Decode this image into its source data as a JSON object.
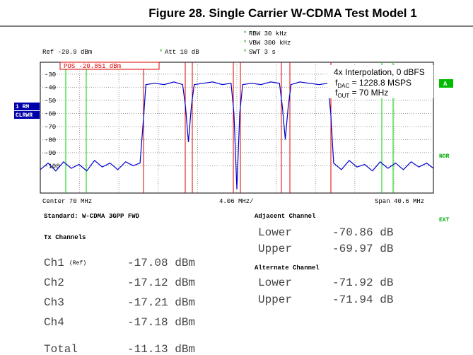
{
  "chart_data": {
    "type": "line",
    "title": "Figure 28. Single Carrier W-CDMA Test Model 1",
    "xlim": [
      49.7,
      90.3
    ],
    "ylim": [
      -120.9,
      -20.9
    ],
    "yticks": [
      -30,
      -40,
      -50,
      -60,
      -70,
      -80,
      -90,
      -100
    ],
    "grid": true,
    "series": [
      {
        "color": "#0000cc",
        "x": [
          49.7,
          50.5,
          51.3,
          52.1,
          52.9,
          53.7,
          54.5,
          55.3,
          56.1,
          56.9,
          57.7,
          58.5,
          59.3,
          60.0,
          60.4,
          60.6,
          61.5,
          62.5,
          63.5,
          64.4,
          64.7,
          65.0,
          65.3,
          65.6,
          66.5,
          67.5,
          68.5,
          69.4,
          69.7,
          70.0,
          70.3,
          70.6,
          71.5,
          72.5,
          73.5,
          74.4,
          74.7,
          75.0,
          75.3,
          75.6,
          76.5,
          77.5,
          78.5,
          79.4,
          79.7,
          80.0,
          80.8,
          81.6,
          82.4,
          83.2,
          84.0,
          84.8,
          85.6,
          86.4,
          87.2,
          88.0,
          88.8,
          89.6,
          90.3
        ],
        "values": [
          -103,
          -98,
          -104,
          -97,
          -102,
          -99,
          -104,
          -96,
          -101,
          -98,
          -103,
          -97,
          -100,
          -98,
          -60,
          -38,
          -37,
          -38,
          -36,
          -38,
          -55,
          -82,
          -55,
          -38,
          -37,
          -36,
          -38,
          -37,
          -60,
          -118,
          -60,
          -38,
          -37,
          -38,
          -36,
          -37,
          -55,
          -80,
          -55,
          -38,
          -36,
          -37,
          -38,
          -37,
          -60,
          -98,
          -103,
          -96,
          -101,
          -99,
          -104,
          -97,
          -102,
          -98,
          -103,
          -97,
          -101,
          -98,
          -102
        ]
      }
    ],
    "annotations": {
      "line1": "4x Interpolation, 0 dBFS",
      "f2": "f",
      "sub2": "DAC",
      "rest2": " = 1228.8 MSPS",
      "f3": "f",
      "sub3": "OUT",
      "rest3": " = 70 MHz"
    }
  },
  "screen": {
    "rbw": "RBW  30 kHz",
    "vbw": "VBW  300 kHz",
    "swt": "SWT  3 s",
    "star": "*",
    "ref": "Ref -20.9 dBm",
    "att": "Att   10 dB",
    "pos": "POS -20.851 dBm",
    "rm": "1 RM",
    "clrwr": "CLRWR",
    "a": "A",
    "nor": "NOR",
    "ext": "EXT",
    "center": "Center 70 MHz",
    "div": "4.06 MHz/",
    "span": "Span 40.6 MHz"
  },
  "table": {
    "standard": "Standard: W-CDMA 3GPP FWD",
    "tx": "Tx Channels",
    "channels": [
      [
        "Ch1",
        "-17.08 dBm"
      ],
      [
        "Ch2",
        "-17.12 dBm"
      ],
      [
        "Ch3",
        "-17.21 dBm"
      ],
      [
        "Ch4",
        "-17.18 dBm"
      ]
    ],
    "ref": "(Ref)",
    "total": [
      "Total",
      "-11.13 dBm"
    ],
    "adjacent": "Adjacent Channel",
    "adj_rows": [
      [
        "Lower",
        "-70.86 dB"
      ],
      [
        "Upper",
        "-69.97 dB"
      ]
    ],
    "alternate": "Alternate Channel",
    "alt_rows": [
      [
        "Lower",
        "-71.92 dB"
      ],
      [
        "Upper",
        "-71.94 dB"
      ]
    ]
  }
}
